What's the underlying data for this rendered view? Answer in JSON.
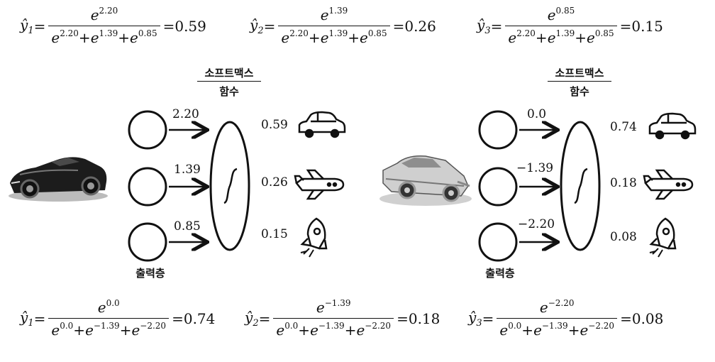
{
  "formulas_top": [
    {
      "lhs": "ŷ",
      "sub": "1",
      "numer_base": "e",
      "numer_exp": "2.20",
      "den": [
        {
          "base": "e",
          "exp": "2.20"
        },
        {
          "base": "e",
          "exp": "1.39"
        },
        {
          "base": "e",
          "exp": "0.85"
        }
      ],
      "result": "0.59"
    },
    {
      "lhs": "ŷ",
      "sub": "2",
      "numer_base": "e",
      "numer_exp": "1.39",
      "den": [
        {
          "base": "e",
          "exp": "2.20"
        },
        {
          "base": "e",
          "exp": "1.39"
        },
        {
          "base": "e",
          "exp": "0.85"
        }
      ],
      "result": "0.26"
    },
    {
      "lhs": "ŷ",
      "sub": "3",
      "numer_base": "e",
      "numer_exp": "0.85",
      "den": [
        {
          "base": "e",
          "exp": "2.20"
        },
        {
          "base": "e",
          "exp": "1.39"
        },
        {
          "base": "e",
          "exp": "0.85"
        }
      ],
      "result": "0.15"
    }
  ],
  "formulas_bottom": [
    {
      "lhs": "ŷ",
      "sub": "1",
      "numer_base": "e",
      "numer_exp": "0.0",
      "den": [
        {
          "base": "e",
          "exp": "0.0"
        },
        {
          "base": "e",
          "exp": "−1.39"
        },
        {
          "base": "e",
          "exp": "−2.20"
        }
      ],
      "result": "0.74"
    },
    {
      "lhs": "ŷ",
      "sub": "2",
      "numer_base": "e",
      "numer_exp": "−1.39",
      "den": [
        {
          "base": "e",
          "exp": "0.0"
        },
        {
          "base": "e",
          "exp": "−1.39"
        },
        {
          "base": "e",
          "exp": "−2.20"
        }
      ],
      "result": "0.18"
    },
    {
      "lhs": "ŷ",
      "sub": "3",
      "numer_base": "e",
      "numer_exp": "−2.20",
      "den": [
        {
          "base": "e",
          "exp": "0.0"
        },
        {
          "base": "e",
          "exp": "−1.39"
        },
        {
          "base": "e",
          "exp": "−2.20"
        }
      ],
      "result": "0.08"
    }
  ],
  "left_diagram": {
    "softmax_title_line1": "소프트맥스",
    "softmax_title_line2": "함수",
    "output_layer_label": "출력층",
    "logits": [
      "2.20",
      "1.39",
      "0.85"
    ],
    "probs": [
      "0.59",
      "0.26",
      "0.15"
    ],
    "input_image": "sports-car-photo"
  },
  "right_diagram": {
    "softmax_title_line1": "소프트맥스",
    "softmax_title_line2": "함수",
    "output_layer_label": "출력층",
    "logits": [
      "0.0",
      "−1.39",
      "−2.20"
    ],
    "probs": [
      "0.74",
      "0.18",
      "0.08"
    ],
    "input_image": "classic-car-photo"
  },
  "class_icons": [
    "car-icon",
    "airplane-icon",
    "rocket-icon"
  ]
}
